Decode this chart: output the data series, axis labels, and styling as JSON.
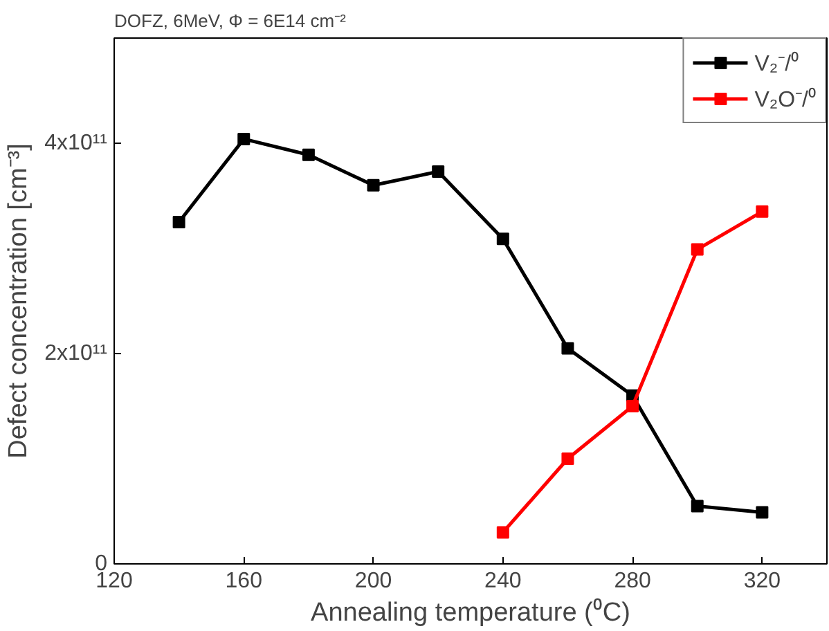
{
  "chart_data": {
    "type": "line",
    "title": "DOFZ, 6MeV, Φ = 6E14 cm⁻²",
    "xlabel": "Annealing temperature (⁰C)",
    "ylabel": "Defect concentration [cm⁻³]",
    "xlim": [
      120,
      340
    ],
    "xticks": [
      120,
      160,
      200,
      240,
      280,
      320
    ],
    "ylim": [
      0,
      500000000000.0
    ],
    "yticks": [
      {
        "value": 0,
        "label": "0"
      },
      {
        "value": 200000000000.0,
        "label": "2x10¹¹"
      },
      {
        "value": 400000000000.0,
        "label": "4x10¹¹"
      }
    ],
    "marker": "square",
    "line_style": "solid",
    "grid": false,
    "legend": "top right",
    "series": [
      {
        "name": "V₂⁻/⁰",
        "color": "#000000",
        "x": [
          140,
          160,
          180,
          200,
          220,
          240,
          260,
          280,
          300,
          320
        ],
        "values": [
          325000000000.0,
          404000000000.0,
          389000000000.0,
          360000000000.0,
          373000000000.0,
          309000000000.0,
          205000000000.0,
          160000000000.0,
          55000000000.0,
          49000000000.0
        ]
      },
      {
        "name": "V₂O⁻/⁰",
        "color": "#ff0000",
        "x": [
          240,
          260,
          280,
          300,
          320
        ],
        "values": [
          30000000000.0,
          100000000000.0,
          150000000000.0,
          299000000000.0,
          335000000000.0
        ]
      }
    ]
  }
}
